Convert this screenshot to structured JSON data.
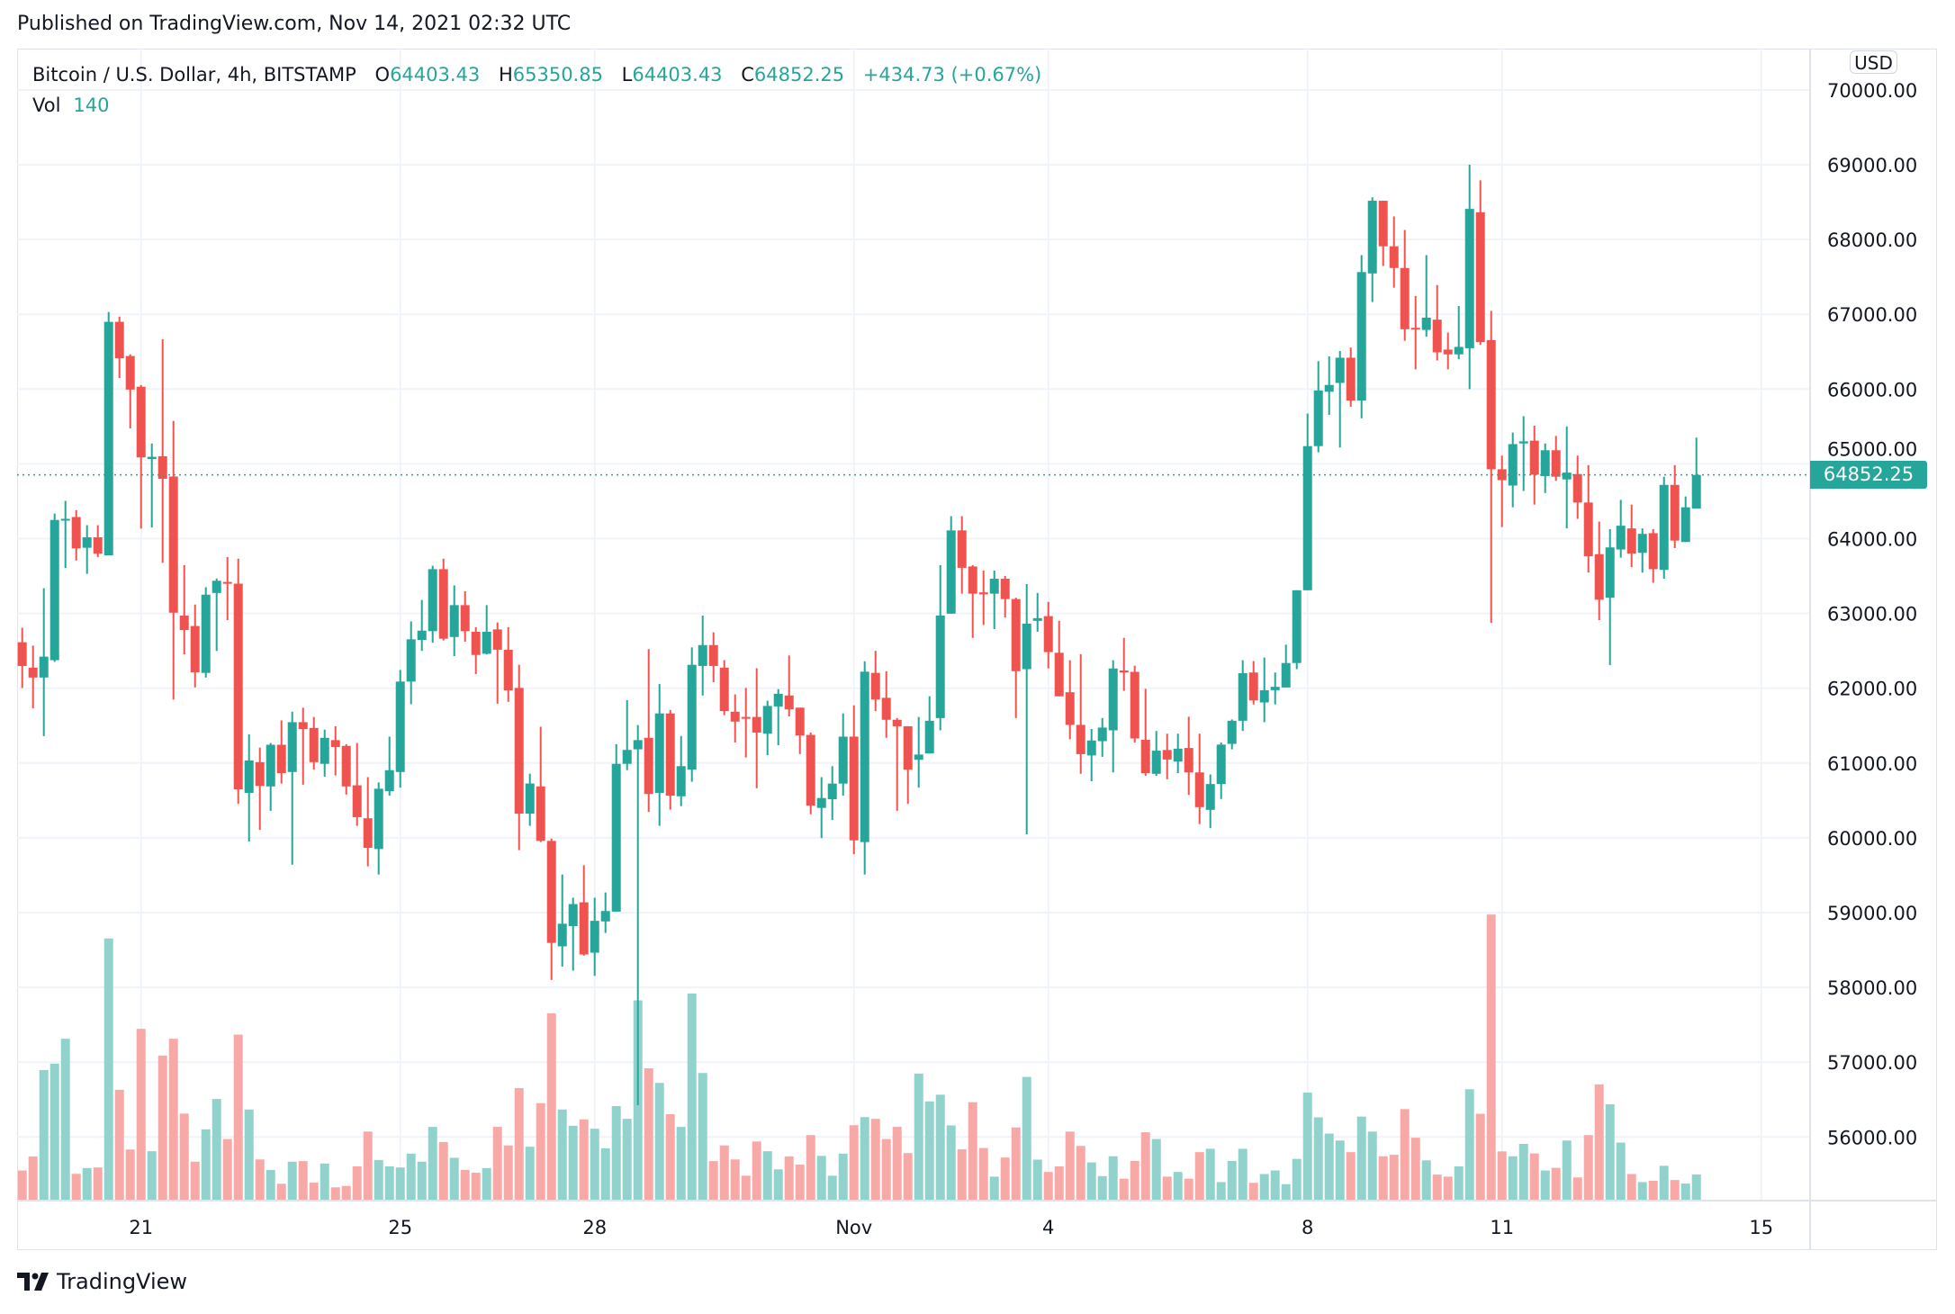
{
  "header": {
    "published": "Published on TradingView.com, Nov 14, 2021 02:32 UTC"
  },
  "legend": {
    "symbol": "Bitcoin / U.S. Dollar, 4h, BITSTAMP",
    "o_label": "O",
    "o_value": "64403.43",
    "h_label": "H",
    "h_value": "65350.85",
    "l_label": "L",
    "l_value": "64403.43",
    "c_label": "C",
    "c_value": "64852.25",
    "change": "+434.73 (+0.67%)",
    "vol_label": "Vol",
    "vol_value": "140"
  },
  "price_axis": {
    "currency": "USD",
    "last_price_label": "64852.25"
  },
  "logo": {
    "text": "TradingView"
  },
  "colors": {
    "up": "#26a69a",
    "down": "#ef5350",
    "vol_up": "#92d2cc",
    "vol_down": "#f7a9a7",
    "grid": "#f0f3fa"
  },
  "chart_data": {
    "type": "candlestick",
    "title": "Bitcoin / U.S. Dollar, 4h, BITSTAMP",
    "interval": "4h",
    "last_price": 64852.25,
    "ylim": [
      55000,
      70500
    ],
    "y_ticks": [
      56000,
      57000,
      58000,
      59000,
      60000,
      61000,
      62000,
      63000,
      64000,
      65000,
      66000,
      67000,
      68000,
      69000,
      70000
    ],
    "y_tick_labels": [
      "56000.00",
      "57000.00",
      "58000.00",
      "59000.00",
      "60000.00",
      "61000.00",
      "62000.00",
      "63000.00",
      "64000.00",
      "65000.00",
      "66000.00",
      "67000.00",
      "68000.00",
      "69000.00",
      "70000.00"
    ],
    "x_ticks": [
      {
        "label": "21",
        "index": 11
      },
      {
        "label": "25",
        "index": 35
      },
      {
        "label": "28",
        "index": 53
      },
      {
        "label": "Nov",
        "index": 77
      },
      {
        "label": "4",
        "index": 95
      },
      {
        "label": "8",
        "index": 119
      },
      {
        "label": "11",
        "index": 137
      },
      {
        "label": "15",
        "index": 161
      }
    ],
    "candle_fields": [
      "open",
      "high",
      "low",
      "close",
      "volume"
    ],
    "candles": [
      [
        62615,
        62809,
        62003,
        62298,
        161
      ],
      [
        62275,
        62569,
        61732,
        62143,
        236
      ],
      [
        62143,
        63336,
        61360,
        62422,
        698
      ],
      [
        62375,
        64335,
        62352,
        64250,
        732
      ],
      [
        64250,
        64505,
        63607,
        64265,
        865
      ],
      [
        64289,
        64381,
        63708,
        63870,
        143
      ],
      [
        63878,
        64180,
        63529,
        64018,
        174
      ],
      [
        64018,
        64180,
        63754,
        63800,
        177
      ],
      [
        63777,
        67030,
        63777,
        66899,
        1401
      ],
      [
        66899,
        66969,
        66147,
        66411,
        592
      ],
      [
        66442,
        66465,
        65474,
        65993,
        273
      ],
      [
        66031,
        66054,
        64134,
        65086,
        918
      ],
      [
        65064,
        65272,
        64149,
        65094,
        264
      ],
      [
        65102,
        66667,
        63677,
        64800,
        775
      ],
      [
        64831,
        65574,
        61849,
        63010,
        865
      ],
      [
        62972,
        63646,
        62453,
        62778,
        465
      ],
      [
        62832,
        63119,
        62011,
        62213,
        208
      ],
      [
        62205,
        63351,
        62143,
        63251,
        381
      ],
      [
        63274,
        63467,
        62499,
        63437,
        543
      ],
      [
        63421,
        63754,
        62910,
        63406,
        329
      ],
      [
        63398,
        63731,
        60454,
        60648,
        887
      ],
      [
        60601,
        61384,
        59951,
        61035,
        487
      ],
      [
        61012,
        61206,
        60106,
        60694,
        220
      ],
      [
        60687,
        61267,
        60361,
        61244,
        164
      ],
      [
        61244,
        61570,
        60725,
        60865,
        90
      ],
      [
        60880,
        61686,
        59641,
        61546,
        208
      ],
      [
        61546,
        61740,
        60710,
        61453,
        211
      ],
      [
        61469,
        61616,
        60911,
        61012,
        96
      ],
      [
        60989,
        61446,
        60818,
        61337,
        198
      ],
      [
        61306,
        61492,
        60834,
        61213,
        71
      ],
      [
        61229,
        61252,
        60578,
        60687,
        78
      ],
      [
        60702,
        61268,
        60160,
        60276,
        183
      ],
      [
        60261,
        60811,
        59618,
        59866,
        369
      ],
      [
        59850,
        60741,
        59509,
        60656,
        217
      ],
      [
        60624,
        61353,
        60563,
        60904,
        183
      ],
      [
        60880,
        62244,
        60671,
        62089,
        177
      ],
      [
        62089,
        62894,
        61787,
        62654,
        251
      ],
      [
        62646,
        63181,
        62499,
        62770,
        208
      ],
      [
        62763,
        63638,
        62608,
        63592,
        394
      ],
      [
        63592,
        63731,
        62639,
        62662,
        313
      ],
      [
        62685,
        63375,
        62429,
        63111,
        229
      ],
      [
        63111,
        63297,
        62623,
        62763,
        164
      ],
      [
        62755,
        62817,
        62190,
        62445,
        149
      ],
      [
        62461,
        63111,
        62453,
        62755,
        174
      ],
      [
        62786,
        62879,
        61794,
        62515,
        394
      ],
      [
        62515,
        62817,
        61818,
        61972,
        295
      ],
      [
        62004,
        62313,
        59835,
        60323,
        601
      ],
      [
        60323,
        60857,
        60160,
        60726,
        288
      ],
      [
        60687,
        61485,
        59943,
        59959,
        521
      ],
      [
        59959,
        59990,
        58100,
        58595,
        1001
      ],
      [
        58549,
        59509,
        58278,
        58851,
        487
      ],
      [
        58820,
        59199,
        58224,
        59114,
        400
      ],
      [
        59137,
        59633,
        58425,
        58440,
        434
      ],
      [
        58464,
        59199,
        58154,
        58890,
        384
      ],
      [
        58882,
        59269,
        58727,
        59021,
        279
      ],
      [
        59013,
        61252,
        59013,
        60989,
        505
      ],
      [
        60989,
        61841,
        60904,
        61175,
        437
      ],
      [
        61183,
        61508,
        56426,
        61306,
        1070
      ],
      [
        61337,
        62523,
        60346,
        60586,
        707
      ],
      [
        60601,
        62057,
        60160,
        61663,
        629
      ],
      [
        61663,
        61709,
        60377,
        60563,
        462
      ],
      [
        60555,
        61361,
        60423,
        60958,
        394
      ],
      [
        60911,
        62546,
        60749,
        62313,
        1107
      ],
      [
        62298,
        62972,
        61903,
        62577,
        682
      ],
      [
        62577,
        62747,
        62081,
        62298,
        211
      ],
      [
        62275,
        62375,
        61640,
        61694,
        295
      ],
      [
        61686,
        61918,
        61275,
        61554,
        220
      ],
      [
        61616,
        62004,
        61074,
        61601,
        133
      ],
      [
        61616,
        62267,
        60663,
        61407,
        316
      ],
      [
        61392,
        61833,
        61105,
        61763,
        264
      ],
      [
        61756,
        61988,
        61237,
        61926,
        167
      ],
      [
        61903,
        62438,
        61624,
        61717,
        236
      ],
      [
        61740,
        61740,
        61120,
        61368,
        192
      ],
      [
        61376,
        61407,
        60315,
        60431,
        350
      ],
      [
        60400,
        60811,
        59997,
        60532,
        239
      ],
      [
        60516,
        60958,
        60238,
        60725,
        133
      ],
      [
        60725,
        61663,
        60563,
        61353,
        251
      ],
      [
        61353,
        61771,
        59781,
        59966,
        403
      ],
      [
        59943,
        62360,
        59509,
        62221,
        446
      ],
      [
        62205,
        62500,
        61694,
        61849,
        437
      ],
      [
        61872,
        62228,
        61337,
        61578,
        329
      ],
      [
        61578,
        61601,
        60361,
        61492,
        394
      ],
      [
        61492,
        61492,
        60454,
        60911,
        254
      ],
      [
        61043,
        61616,
        60671,
        61113,
        679
      ],
      [
        61128,
        61892,
        61128,
        61565,
        530
      ],
      [
        61601,
        63646,
        61437,
        62973,
        566
      ],
      [
        62997,
        64301,
        62997,
        64110,
        402
      ],
      [
        64110,
        64301,
        63264,
        63610,
        274
      ],
      [
        63628,
        63646,
        62673,
        63264,
        526
      ],
      [
        63282,
        63574,
        62846,
        63255,
        281
      ],
      [
        63264,
        63574,
        62791,
        63464,
        128
      ],
      [
        63464,
        63501,
        62946,
        63192,
        230
      ],
      [
        63192,
        63210,
        61601,
        62228,
        391
      ],
      [
        62255,
        63392,
        60047,
        62864,
        661
      ],
      [
        62901,
        63274,
        62755,
        62937,
        219
      ],
      [
        62964,
        63155,
        62265,
        62483,
        153
      ],
      [
        62474,
        62901,
        61892,
        61892,
        183
      ],
      [
        61946,
        62374,
        61319,
        61510,
        369
      ],
      [
        61510,
        62455,
        60856,
        61119,
        292
      ],
      [
        61101,
        61455,
        60756,
        61301,
        204
      ],
      [
        61292,
        61601,
        61083,
        61474,
        131
      ],
      [
        61437,
        62374,
        60874,
        62264,
        237
      ],
      [
        62237,
        62673,
        61965,
        62210,
        117
      ],
      [
        62219,
        62301,
        61274,
        61328,
        212
      ],
      [
        61310,
        61992,
        60829,
        60865,
        365
      ],
      [
        60856,
        61428,
        60829,
        61165,
        329
      ],
      [
        61174,
        61392,
        60783,
        61047,
        128
      ],
      [
        61019,
        61392,
        60865,
        61192,
        153
      ],
      [
        61201,
        61619,
        60574,
        60874,
        117
      ],
      [
        60874,
        61392,
        60183,
        60410,
        259
      ],
      [
        60374,
        60847,
        60129,
        60719,
        277
      ],
      [
        60719,
        61274,
        60519,
        61246,
        99
      ],
      [
        61256,
        61583,
        61183,
        61565,
        212
      ],
      [
        61565,
        62374,
        61428,
        62201,
        277
      ],
      [
        62210,
        62364,
        61783,
        61837,
        95
      ],
      [
        61810,
        62410,
        61546,
        61974,
        142
      ],
      [
        61974,
        62210,
        61783,
        62019,
        161
      ],
      [
        62010,
        62583,
        62010,
        62337,
        88
      ],
      [
        62337,
        63310,
        62255,
        63310,
        223
      ],
      [
        63310,
        65673,
        63310,
        65237,
        577
      ],
      [
        65237,
        66373,
        65155,
        65982,
        445
      ],
      [
        65964,
        66437,
        65655,
        66055,
        358
      ],
      [
        66082,
        66510,
        65219,
        66419,
        321
      ],
      [
        66419,
        66555,
        65764,
        65846,
        259
      ],
      [
        65846,
        67791,
        65609,
        67564,
        449
      ],
      [
        67546,
        68564,
        67164,
        68518,
        369
      ],
      [
        68518,
        68518,
        67646,
        67909,
        237
      ],
      [
        67909,
        68309,
        67355,
        67619,
        245
      ],
      [
        67619,
        68127,
        66646,
        66800,
        489
      ],
      [
        66819,
        67246,
        66264,
        66800,
        336
      ],
      [
        66791,
        67791,
        66700,
        66955,
        215
      ],
      [
        66928,
        67391,
        66382,
        66491,
        139
      ],
      [
        66528,
        66755,
        66264,
        66464,
        128
      ],
      [
        66464,
        67110,
        66400,
        66564,
        183
      ],
      [
        66546,
        69000,
        65999,
        68409,
        595
      ],
      [
        68364,
        68791,
        66591,
        66628,
        464
      ],
      [
        66655,
        67046,
        62873,
        64928,
        1529
      ],
      [
        64928,
        65110,
        64155,
        64782,
        263
      ],
      [
        64710,
        65419,
        64419,
        65264,
        237
      ],
      [
        65273,
        65637,
        64637,
        65301,
        303
      ],
      [
        65310,
        65510,
        64455,
        64855,
        252
      ],
      [
        64837,
        65273,
        64610,
        65182,
        161
      ],
      [
        65182,
        65373,
        64773,
        64828,
        175
      ],
      [
        64792,
        65501,
        64137,
        64883,
        321
      ],
      [
        64864,
        65110,
        64264,
        64483,
        124
      ],
      [
        64483,
        64983,
        63546,
        63764,
        350
      ],
      [
        63792,
        64228,
        62910,
        63183,
        621
      ],
      [
        63210,
        64128,
        62310,
        63883,
        515
      ],
      [
        63855,
        64519,
        63746,
        64173,
        310
      ],
      [
        64137,
        64455,
        63619,
        63801,
        142
      ],
      [
        63810,
        64137,
        63546,
        64064,
        99
      ],
      [
        64073,
        64128,
        63410,
        63592,
        106
      ],
      [
        63583,
        64828,
        63464,
        64719,
        186
      ],
      [
        64719,
        64983,
        63874,
        63974,
        110
      ],
      [
        63955,
        64564,
        63955,
        64419,
        91
      ],
      [
        64403.43,
        65350.85,
        64403.43,
        64852.25,
        140
      ]
    ]
  }
}
